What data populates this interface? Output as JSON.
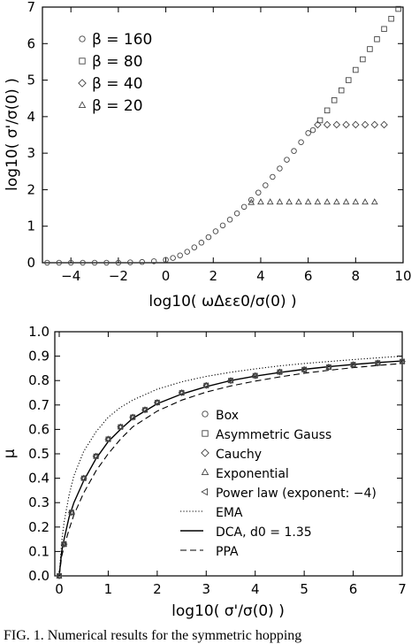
{
  "caption": "FIG. 1.   Numerical results for the symmetric hopping",
  "chart_data": [
    {
      "type": "scatter",
      "title": "",
      "xlabel": "log10( ωΔεε0/σ(0) )",
      "ylabel": "log10( σ'/σ(0) )",
      "xlim": [
        -5.2,
        10
      ],
      "ylim": [
        0,
        7
      ],
      "xticks": [
        -4,
        -2,
        0,
        2,
        4,
        6,
        8,
        10
      ],
      "yticks": [
        0,
        1,
        2,
        3,
        4,
        5,
        6,
        7
      ],
      "grid": false,
      "legend_position": "top-left",
      "series": [
        {
          "name": "β = 160",
          "marker": "circle",
          "x": [
            -5.0,
            -4.5,
            -4.0,
            -3.5,
            -3.0,
            -2.5,
            -2.0,
            -1.5,
            -1.0,
            -0.5,
            0.0,
            0.3,
            0.6,
            0.9,
            1.2,
            1.5,
            1.8,
            2.1,
            2.4,
            2.7,
            3.0,
            3.3,
            3.6,
            3.9,
            4.2,
            4.5,
            4.8,
            5.1,
            5.4,
            5.7,
            6.0,
            6.2
          ],
          "y": [
            0.0,
            0.0,
            0.0,
            0.0,
            0.0,
            0.0,
            0.0,
            0.01,
            0.02,
            0.04,
            0.08,
            0.13,
            0.2,
            0.3,
            0.42,
            0.55,
            0.7,
            0.86,
            1.02,
            1.18,
            1.35,
            1.53,
            1.72,
            1.92,
            2.12,
            2.35,
            2.58,
            2.82,
            3.06,
            3.3,
            3.55,
            3.63
          ]
        },
        {
          "name": "β = 80",
          "marker": "square",
          "x": [
            6.5,
            6.8,
            7.1,
            7.4,
            7.7,
            8.0,
            8.3,
            8.6,
            8.9,
            9.2,
            9.5,
            9.8
          ],
          "y": [
            3.9,
            4.17,
            4.45,
            4.72,
            5.0,
            5.28,
            5.57,
            5.85,
            6.12,
            6.4,
            6.68,
            6.95
          ]
        },
        {
          "name": "β = 40",
          "marker": "diamond",
          "x": [
            6.4,
            6.8,
            7.2,
            7.6,
            8.0,
            8.4,
            8.8,
            9.2
          ],
          "y": [
            3.78,
            3.78,
            3.78,
            3.78,
            3.78,
            3.78,
            3.78,
            3.78
          ]
        },
        {
          "name": "β = 20",
          "marker": "triangle",
          "x": [
            3.6,
            4.0,
            4.4,
            4.8,
            5.2,
            5.6,
            6.0,
            6.4,
            6.8,
            7.2,
            7.6,
            8.0,
            8.4,
            8.8
          ],
          "y": [
            1.65,
            1.66,
            1.66,
            1.66,
            1.66,
            1.66,
            1.66,
            1.66,
            1.66,
            1.66,
            1.66,
            1.66,
            1.66,
            1.66
          ]
        }
      ]
    },
    {
      "type": "line",
      "title": "",
      "xlabel": "log10( σ'/σ(0) )",
      "ylabel": "μ",
      "xlim": [
        0,
        7
      ],
      "ylim": [
        0,
        1.0
      ],
      "xticks": [
        0,
        1,
        2,
        3,
        4,
        5,
        6,
        7
      ],
      "yticks": [
        0.0,
        0.1,
        0.2,
        0.3,
        0.4,
        0.5,
        0.6,
        0.7,
        0.8,
        0.9,
        1.0
      ],
      "grid": false,
      "legend_position": "center-right",
      "series": [
        {
          "name": "Box",
          "marker": "circle",
          "x": [
            0,
            0.1,
            0.25,
            0.5,
            0.75,
            1.0,
            1.25,
            1.5,
            1.75,
            2.0,
            2.5,
            3.0,
            3.5,
            4.0,
            4.5,
            5.0,
            5.5,
            6.0,
            6.5,
            7.0
          ],
          "y": [
            0,
            0.13,
            0.26,
            0.4,
            0.49,
            0.56,
            0.61,
            0.65,
            0.68,
            0.71,
            0.75,
            0.78,
            0.8,
            0.82,
            0.835,
            0.845,
            0.855,
            0.865,
            0.872,
            0.878
          ]
        },
        {
          "name": "Asymmetric Gauss",
          "marker": "square",
          "x": [
            0,
            0.1,
            0.25,
            0.5,
            0.75,
            1.0,
            1.25,
            1.5,
            1.75,
            2.0,
            2.5,
            3.0,
            3.5,
            4.0,
            4.5,
            5.0,
            5.5,
            6.0,
            6.5,
            7.0
          ],
          "y": [
            0,
            0.13,
            0.26,
            0.4,
            0.49,
            0.56,
            0.61,
            0.65,
            0.68,
            0.71,
            0.75,
            0.78,
            0.8,
            0.82,
            0.835,
            0.845,
            0.855,
            0.865,
            0.872,
            0.878
          ]
        },
        {
          "name": "Cauchy",
          "marker": "diamond",
          "x": [
            0,
            0.1,
            0.25,
            0.5,
            0.75,
            1.0,
            1.25,
            1.5,
            1.75,
            2.0,
            2.5,
            3.0,
            3.5,
            4.0,
            4.5,
            5.0,
            5.5,
            6.0,
            6.5,
            7.0
          ],
          "y": [
            0,
            0.13,
            0.26,
            0.4,
            0.49,
            0.56,
            0.61,
            0.65,
            0.68,
            0.71,
            0.75,
            0.78,
            0.8,
            0.82,
            0.835,
            0.845,
            0.855,
            0.865,
            0.872,
            0.878
          ]
        },
        {
          "name": "Exponential",
          "marker": "triangle",
          "x": [
            0,
            0.1,
            0.25,
            0.5,
            0.75,
            1.0,
            1.25,
            1.5,
            1.75,
            2.0,
            2.5,
            3.0,
            3.5,
            4.0,
            4.5,
            5.0,
            5.5,
            6.0,
            6.5,
            7.0
          ],
          "y": [
            0,
            0.13,
            0.26,
            0.4,
            0.49,
            0.56,
            0.61,
            0.65,
            0.68,
            0.71,
            0.75,
            0.78,
            0.8,
            0.82,
            0.835,
            0.845,
            0.855,
            0.865,
            0.872,
            0.878
          ]
        },
        {
          "name": "Power law (exponent: −4)",
          "marker": "triangle-left",
          "x": [
            0,
            0.1,
            0.25,
            0.5,
            0.75,
            1.0,
            1.25,
            1.5,
            1.75,
            2.0,
            2.5,
            3.0,
            3.5,
            4.0,
            4.5,
            5.0,
            5.5,
            6.0,
            6.5,
            7.0
          ],
          "y": [
            0,
            0.13,
            0.26,
            0.4,
            0.49,
            0.56,
            0.61,
            0.65,
            0.68,
            0.71,
            0.75,
            0.78,
            0.8,
            0.82,
            0.835,
            0.845,
            0.855,
            0.865,
            0.872,
            0.878
          ]
        },
        {
          "name": "EMA",
          "line": "dotted",
          "x": [
            0,
            0.05,
            0.1,
            0.2,
            0.3,
            0.5,
            0.75,
            1.0,
            1.25,
            1.5,
            2.0,
            2.5,
            3.0,
            3.5,
            4.0,
            4.5,
            5.0,
            5.5,
            6.0,
            6.5,
            7.0
          ],
          "y": [
            0,
            0.14,
            0.22,
            0.33,
            0.41,
            0.51,
            0.59,
            0.65,
            0.69,
            0.72,
            0.765,
            0.795,
            0.817,
            0.834,
            0.848,
            0.86,
            0.87,
            0.878,
            0.886,
            0.893,
            0.9
          ]
        },
        {
          "name": "DCA, d0 = 1.35",
          "line": "solid",
          "x": [
            0,
            0.05,
            0.1,
            0.2,
            0.3,
            0.5,
            0.75,
            1.0,
            1.25,
            1.5,
            2.0,
            2.5,
            3.0,
            3.5,
            4.0,
            4.5,
            5.0,
            5.5,
            6.0,
            6.5,
            7.0
          ],
          "y": [
            0,
            0.1,
            0.15,
            0.24,
            0.3,
            0.39,
            0.48,
            0.55,
            0.6,
            0.645,
            0.705,
            0.745,
            0.775,
            0.8,
            0.818,
            0.833,
            0.846,
            0.857,
            0.866,
            0.874,
            0.88
          ]
        },
        {
          "name": "PPA",
          "line": "dashed",
          "x": [
            0,
            0.05,
            0.1,
            0.2,
            0.3,
            0.5,
            0.75,
            1.0,
            1.25,
            1.5,
            2.0,
            2.5,
            3.0,
            3.5,
            4.0,
            4.5,
            5.0,
            5.5,
            6.0,
            6.5,
            7.0
          ],
          "y": [
            0,
            0.08,
            0.12,
            0.19,
            0.25,
            0.34,
            0.43,
            0.5,
            0.56,
            0.61,
            0.675,
            0.72,
            0.753,
            0.778,
            0.798,
            0.815,
            0.83,
            0.842,
            0.853,
            0.862,
            0.87
          ]
        }
      ]
    }
  ]
}
